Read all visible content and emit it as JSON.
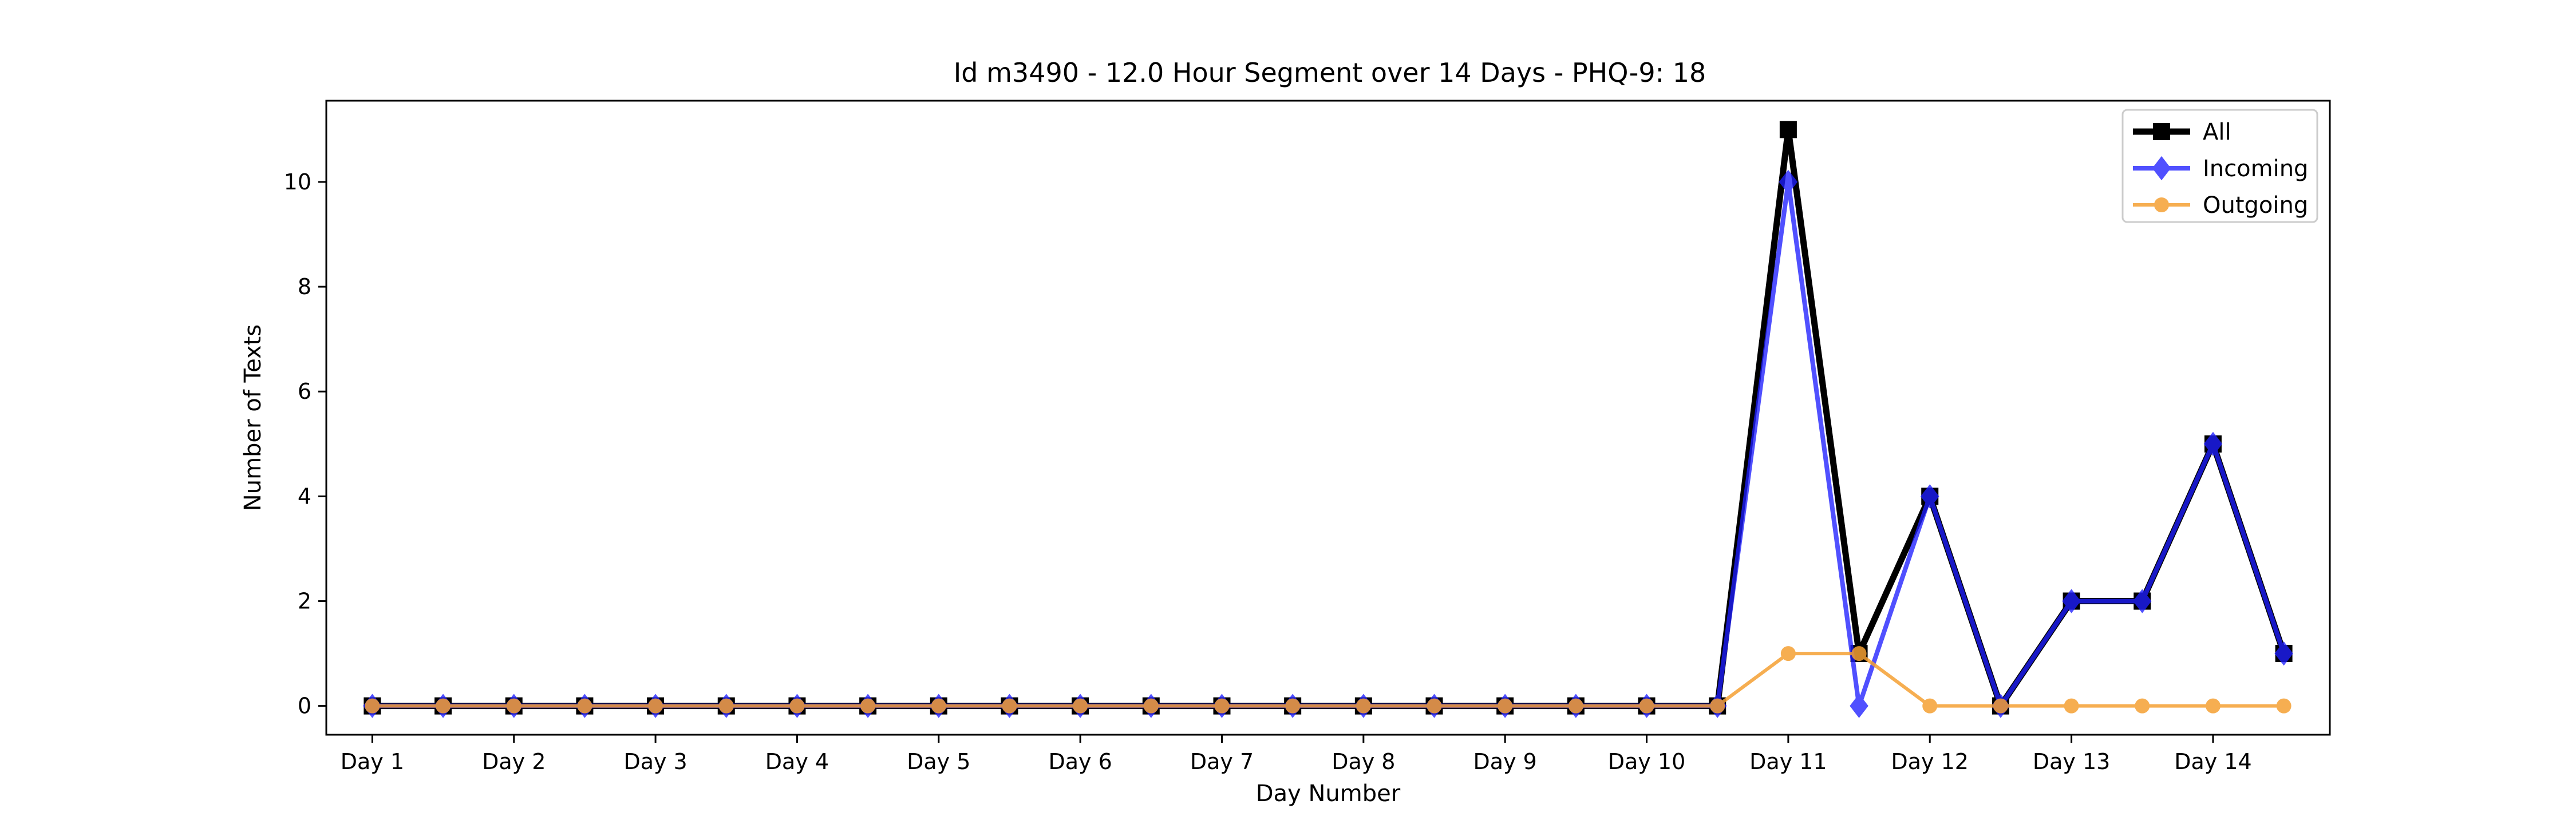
{
  "chart_data": {
    "type": "line",
    "title": "Id m3490 - 12.0 Hour Segment over 14 Days - PHQ-9: 18",
    "xlabel": "Day Number",
    "ylabel": "Number of Texts",
    "x_tick_labels": [
      "Day 1",
      "Day 2",
      "Day 3",
      "Day 4",
      "Day 5",
      "Day 6",
      "Day 7",
      "Day 8",
      "Day 9",
      "Day 10",
      "Day 11",
      "Day 12",
      "Day 13",
      "Day 14"
    ],
    "y_ticks": [
      0,
      2,
      4,
      6,
      8,
      10
    ],
    "ylim": [
      -0.55,
      11.55
    ],
    "xlim": [
      -0.65,
      27.65
    ],
    "grid": false,
    "legend_position": "top-right",
    "series": [
      {
        "name": "All",
        "color": "#000000",
        "marker": "square",
        "values": [
          0,
          0,
          0,
          0,
          0,
          0,
          0,
          0,
          0,
          0,
          0,
          0,
          0,
          0,
          0,
          0,
          0,
          0,
          0,
          0,
          11,
          1,
          4,
          0,
          2,
          2,
          5,
          1
        ]
      },
      {
        "name": "Incoming",
        "color": "#1f1fff",
        "marker": "diamond",
        "values": [
          0,
          0,
          0,
          0,
          0,
          0,
          0,
          0,
          0,
          0,
          0,
          0,
          0,
          0,
          0,
          0,
          0,
          0,
          0,
          0,
          10,
          0,
          4,
          0,
          2,
          2,
          5,
          1
        ]
      },
      {
        "name": "Outgoing",
        "color": "#f5a033",
        "marker": "circle",
        "values": [
          0,
          0,
          0,
          0,
          0,
          0,
          0,
          0,
          0,
          0,
          0,
          0,
          0,
          0,
          0,
          0,
          0,
          0,
          0,
          0,
          1,
          1,
          0,
          0,
          0,
          0,
          0,
          0
        ]
      }
    ]
  }
}
